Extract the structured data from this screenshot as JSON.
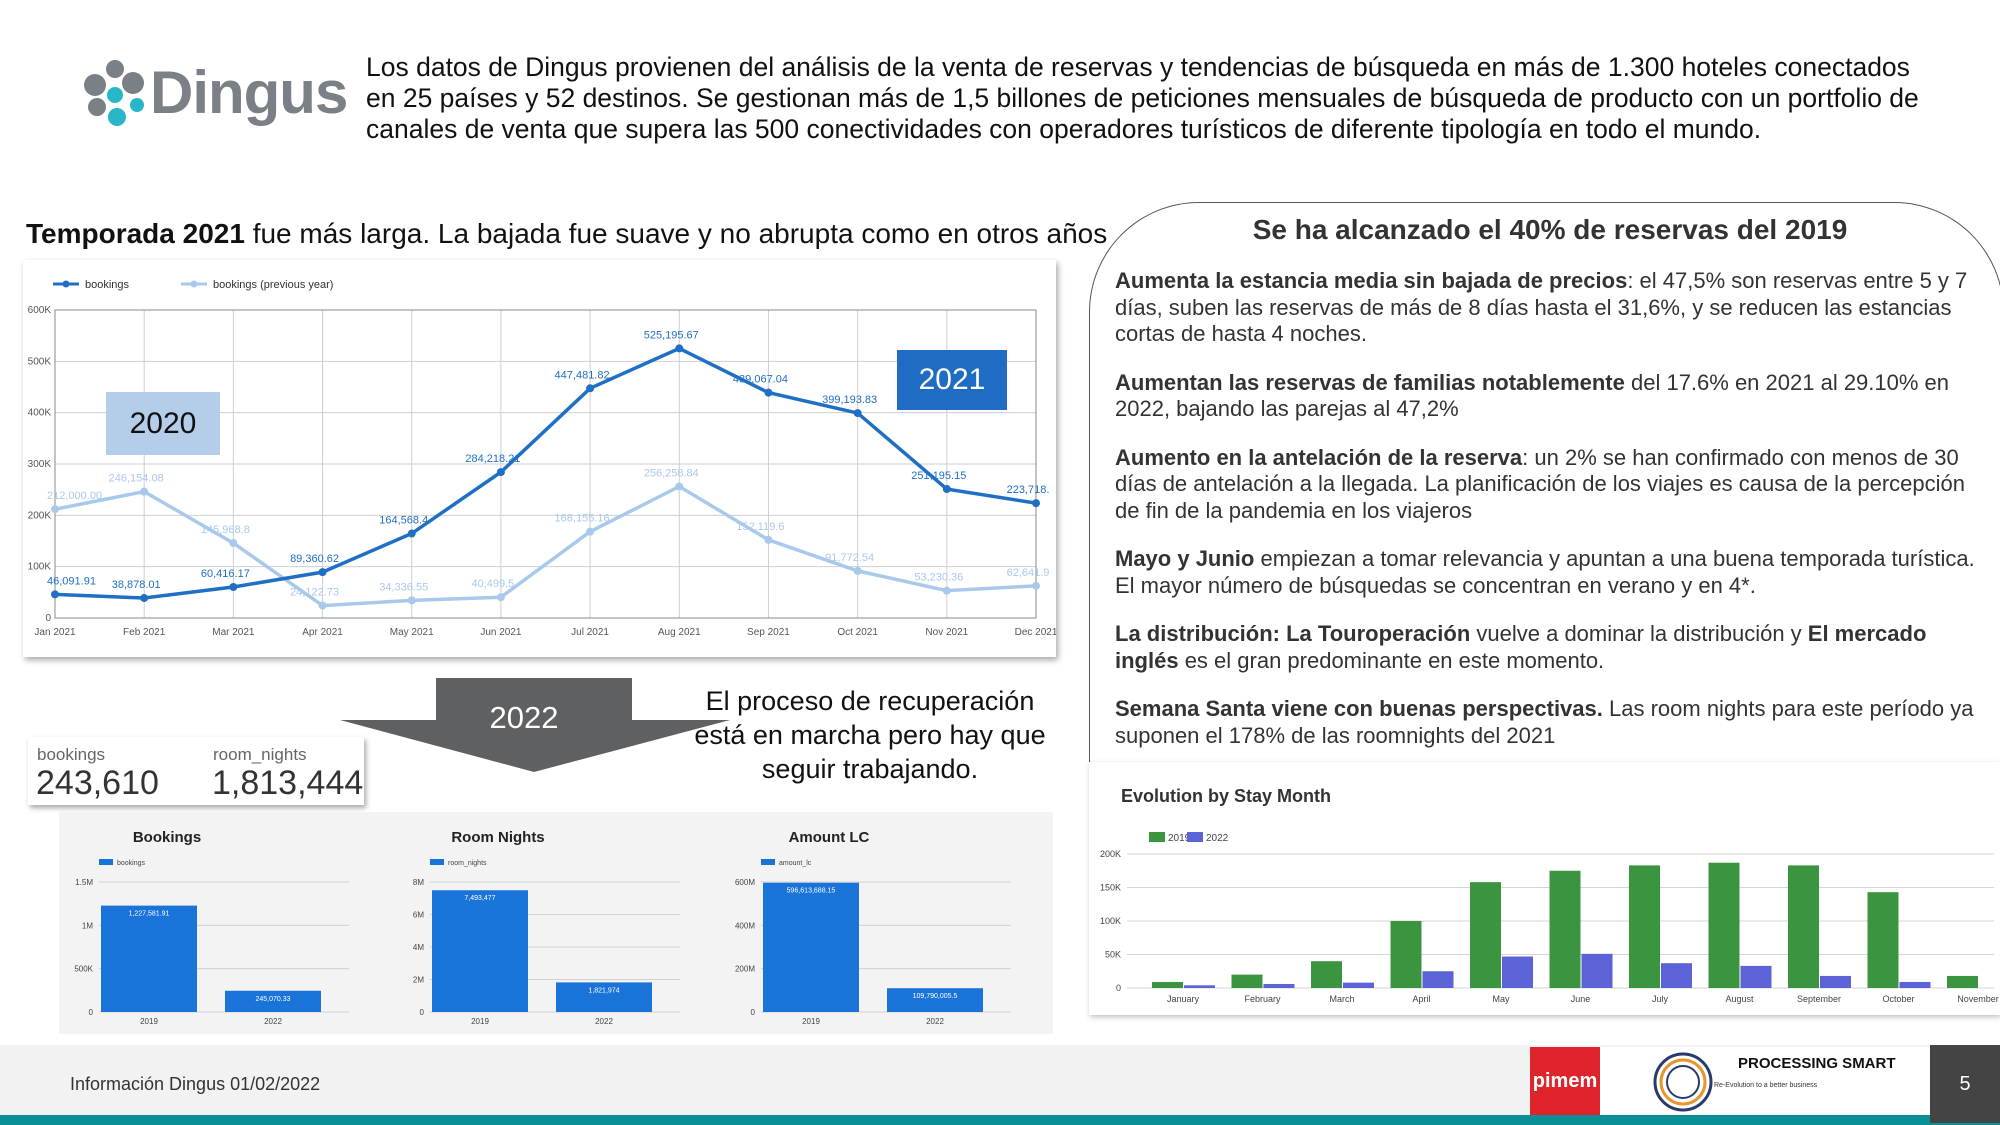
{
  "header": {
    "logo_text": "Dingus",
    "intro": "Los datos de Dingus provienen del análisis de la venta de reservas y tendencias de búsqueda en más de 1.300 hoteles conectados en 25 países y 52 destinos. Se gestionan más de 1,5 billones de peticiones mensuales de búsqueda de producto con un portfolio de canales de venta que supera las 500 conectividades con operadores turísticos de diferente tipología en todo el mundo."
  },
  "left": {
    "heading_bold": "Temporada 2021",
    "heading_rest": " fue más larga. La bajada fue suave y no abrupta como en otros años",
    "tag_2020": "2020",
    "tag_2021": "2021",
    "arrow_label": "2022",
    "recovery_text": "El proceso de recuperación está en marcha pero hay que seguir trabajando.",
    "kpi": {
      "bookings_label": "bookings",
      "bookings_value": "243,610",
      "room_nights_label": "room_nights",
      "room_nights_value": "1,813,444"
    }
  },
  "right": {
    "title": "Se ha alcanzado el 40% de reservas del 2019",
    "items": [
      {
        "bold": "Aumenta la estancia media sin bajada de precios",
        "text": ": el 47,5% son reservas entre 5 y 7 días, suben las reservas de más de 8 días hasta el 31,6%, y se reducen las estancias cortas de hasta 4 noches."
      },
      {
        "bold": "Aumentan las reservas de familias notablemente",
        "text": " del 17.6% en 2021 al 29.10% en 2022, bajando las parejas al 47,2%"
      },
      {
        "bold": "Aumento en la antelación de la reserva",
        "text": ": un 2% se han confirmado con menos de 30 días de antelación a la llegada. La planificación de los viajes es causa de la percepción de fin de la pandemia en los viajeros"
      },
      {
        "bold": "Mayo y Junio",
        "text": " empiezan a tomar relevancia y apuntan a una buena temporada turística. El mayor número de búsquedas se concentran en verano y en 4*."
      },
      {
        "bold": "La distribución: La Touroperación",
        "text": " vuelve a dominar la distribución y ",
        "bold2": "El mercado inglés",
        "text2": " es el gran predominante en este momento."
      },
      {
        "bold": "Semana Santa viene con buenas perspectivas.",
        "text": " Las room nights para este período ya suponen el 178% de las roomnights del 2021"
      }
    ]
  },
  "footer": {
    "info": "Información Dingus 01/02/2022",
    "pimem": "pimem",
    "ps_title": "PROCESSING SMART",
    "ps_sub": "Re-Evolution to a better business",
    "page_number": "5"
  },
  "colors": {
    "series_current": "#1f6fc5",
    "series_previous": "#a9c9ec",
    "bar_blue": "#1a73d9",
    "bar_green": "#3b943f",
    "bar_purple": "#5b63d6",
    "teal": "#0b8f96"
  },
  "chart_data": [
    {
      "type": "line",
      "x": [
        "Jan 2021",
        "Feb 2021",
        "Mar 2021",
        "Apr 2021",
        "May 2021",
        "Jun 2021",
        "Jul 2021",
        "Aug 2021",
        "Sep 2021",
        "Oct 2021",
        "Nov 2021",
        "Dec 2021"
      ],
      "ylim": [
        0,
        600000
      ],
      "yticks": [
        "0",
        "100K",
        "200K",
        "300K",
        "400K",
        "500K",
        "600K"
      ],
      "grid": true,
      "legend": "top-left",
      "series": [
        {
          "name": "bookings",
          "values": [
            46091.91,
            38878.01,
            60416.17,
            89360.62,
            164568.4,
            284218.21,
            447481.82,
            525195.67,
            439067.04,
            399193.83,
            251195.15,
            223718
          ],
          "labels": [
            "46,091.91",
            "38,878.01",
            "60,416.17",
            "89,360.62",
            "164,568.4",
            "284,218.21",
            "447,481.82",
            "525,195.67",
            "439,067.04",
            "399,193.83",
            "251,195.15",
            "223,718."
          ]
        },
        {
          "name": "bookings (previous year)",
          "values": [
            212000,
            246154.08,
            145968.8,
            24122.73,
            34336.55,
            40499.5,
            168155.16,
            256258.84,
            152119.6,
            91772.54,
            53230.36,
            62641.9
          ],
          "labels": [
            "212,000.00",
            "246,154.08",
            "145,968.8",
            "24,122.73",
            "34,336.55",
            "40,499.5",
            "168,155.16",
            "256,258.84",
            "152,119.6",
            "91,772.54",
            "53,230.36",
            "62,641.9"
          ]
        }
      ]
    },
    {
      "type": "bar",
      "title": "Bookings",
      "series": [
        {
          "name": "bookings",
          "values": [
            1227581.91,
            245070.33
          ],
          "labels": [
            "1,227,581.91",
            "245,070.33"
          ]
        }
      ],
      "categories": [
        "2019",
        "2022"
      ],
      "ylim": [
        0,
        1500000
      ],
      "yticks": [
        "0",
        "500K",
        "1M",
        "1.5M"
      ]
    },
    {
      "type": "bar",
      "title": "Room Nights",
      "series": [
        {
          "name": "room_nights",
          "values": [
            7493477,
            1821974
          ],
          "labels": [
            "7,493,477",
            "1,821,974"
          ]
        }
      ],
      "categories": [
        "2019",
        "2022"
      ],
      "ylim": [
        0,
        8000000
      ],
      "yticks": [
        "0",
        "2M",
        "4M",
        "6M",
        "8M"
      ]
    },
    {
      "type": "bar",
      "title": "Amount LC",
      "series": [
        {
          "name": "amount_lc",
          "values": [
            596613688.15,
            109790005.5
          ],
          "labels": [
            "596,613,688.15",
            "109,790,005.5"
          ]
        }
      ],
      "categories": [
        "2019",
        "2022"
      ],
      "ylim": [
        0,
        600000000
      ],
      "yticks": [
        "0",
        "200M",
        "400M",
        "600M"
      ]
    },
    {
      "type": "bar",
      "title": "Evolution by Stay Month",
      "categories": [
        "January",
        "February",
        "March",
        "April",
        "May",
        "June",
        "July",
        "August",
        "September",
        "October",
        "November"
      ],
      "ylim": [
        0,
        200000
      ],
      "yticks": [
        "0",
        "50K",
        "100K",
        "150K",
        "200K"
      ],
      "legend": "top-left",
      "series": [
        {
          "name": "2019",
          "values": [
            9000,
            20000,
            40000,
            100000,
            158000,
            175000,
            183000,
            187000,
            183000,
            143000,
            18000
          ]
        },
        {
          "name": "2022",
          "values": [
            4000,
            6000,
            8000,
            25000,
            47000,
            51000,
            37000,
            33000,
            18000,
            9000,
            0
          ]
        }
      ]
    }
  ]
}
